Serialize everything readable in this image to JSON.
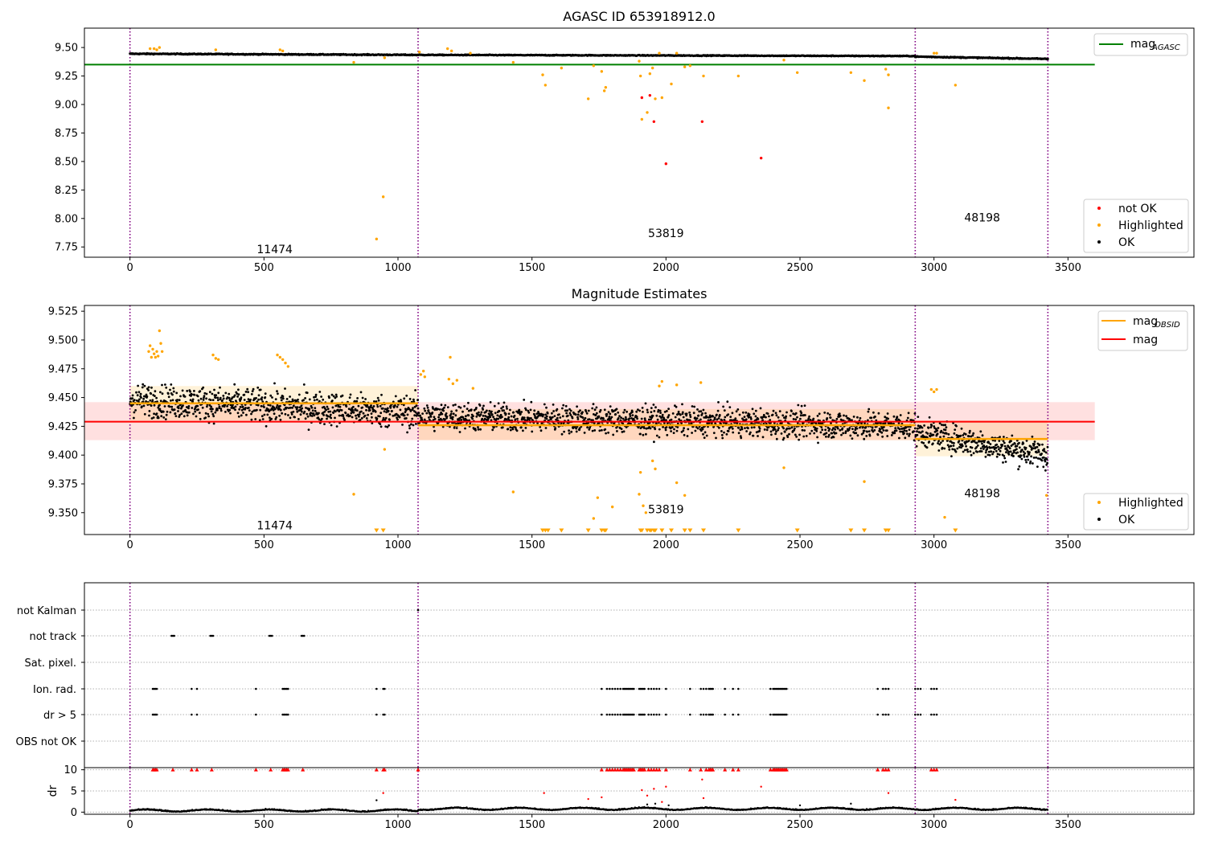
{
  "chart_data": [
    {
      "type": "scatter",
      "title": "AGASC ID 653918912.0",
      "xticks": [
        "0",
        "500",
        "1000",
        "1500",
        "2000",
        "2500",
        "3000",
        "3500"
      ],
      "yticks": [
        "7.75",
        "8.00",
        "8.25",
        "8.50",
        "8.75",
        "9.00",
        "9.25",
        "9.50"
      ],
      "xlim": [
        -170,
        3970
      ],
      "ylim": [
        7.66,
        9.67
      ],
      "mag_agasc": 9.35,
      "mag_agasc_xrange": [
        -170,
        3600
      ],
      "legend_line": "mag",
      "legend_line_sub": "AGASC",
      "legend_points": [
        "not OK",
        "Highlighted",
        "OK"
      ],
      "obsid_boundaries": [
        0,
        1075,
        2930,
        3425
      ],
      "annotations": [
        {
          "text": "11474",
          "x": 540,
          "y": 7.73
        },
        {
          "text": "53819",
          "x": 2000,
          "y": 7.87
        },
        {
          "text": "48198",
          "x": 3180,
          "y": 8.01
        }
      ],
      "series": [
        {
          "name": "not OK",
          "color": "#ff0000",
          "points": [
            [
              1910,
              9.06
            ],
            [
              1940,
              9.08
            ],
            [
              1955,
              8.85
            ],
            [
              2000,
              8.48
            ],
            [
              2135,
              8.85
            ],
            [
              2355,
              8.53
            ]
          ]
        },
        {
          "name": "Highlighted",
          "color": "#ffa500",
          "points": [
            [
              75,
              9.49
            ],
            [
              90,
              9.49
            ],
            [
              100,
              9.48
            ],
            [
              110,
              9.5
            ],
            [
              320,
              9.48
            ],
            [
              560,
              9.48
            ],
            [
              570,
              9.47
            ],
            [
              835,
              9.37
            ],
            [
              920,
              7.82
            ],
            [
              945,
              8.19
            ],
            [
              950,
              9.41
            ],
            [
              1080,
              9.46
            ],
            [
              1185,
              9.49
            ],
            [
              1200,
              9.47
            ],
            [
              1270,
              9.45
            ],
            [
              1430,
              9.37
            ],
            [
              1540,
              9.26
            ],
            [
              1550,
              9.17
            ],
            [
              1610,
              9.32
            ],
            [
              1710,
              9.05
            ],
            [
              1730,
              9.34
            ],
            [
              1760,
              9.29
            ],
            [
              1770,
              9.12
            ],
            [
              1775,
              9.15
            ],
            [
              1900,
              9.38
            ],
            [
              1905,
              9.25
            ],
            [
              1910,
              8.87
            ],
            [
              1930,
              8.93
            ],
            [
              1940,
              9.27
            ],
            [
              1950,
              9.32
            ],
            [
              1960,
              9.05
            ],
            [
              1975,
              9.45
            ],
            [
              1985,
              9.06
            ],
            [
              2020,
              9.18
            ],
            [
              2040,
              9.45
            ],
            [
              2070,
              9.33
            ],
            [
              2090,
              9.34
            ],
            [
              2140,
              9.25
            ],
            [
              2270,
              9.25
            ],
            [
              2440,
              9.39
            ],
            [
              2490,
              9.28
            ],
            [
              2690,
              9.28
            ],
            [
              2740,
              9.21
            ],
            [
              2820,
              9.31
            ],
            [
              2830,
              8.97
            ],
            [
              2830,
              9.26
            ],
            [
              3000,
              9.45
            ],
            [
              3010,
              9.45
            ],
            [
              3080,
              9.17
            ]
          ]
        }
      ],
      "ok_bands": [
        {
          "x0": 0,
          "x1": 1075,
          "y0": 9.445,
          "y1": 9.435,
          "jitter": 0.012
        },
        {
          "x0": 1075,
          "x1": 2930,
          "y0": 9.435,
          "y1": 9.425,
          "jitter": 0.01
        },
        {
          "x0": 2930,
          "x1": 3425,
          "y0": 9.42,
          "y1": 9.4,
          "jitter": 0.012
        }
      ]
    },
    {
      "type": "scatter",
      "title": "Magnitude Estimates",
      "xticks": [
        "0",
        "500",
        "1000",
        "1500",
        "2000",
        "2500",
        "3000",
        "3500"
      ],
      "yticks": [
        "9.350",
        "9.375",
        "9.400",
        "9.425",
        "9.450",
        "9.475",
        "9.500",
        "9.525"
      ],
      "xlim": [
        -170,
        3970
      ],
      "ylim": [
        9.331,
        9.53
      ],
      "mag": 9.429,
      "mag_band": [
        9.413,
        9.446
      ],
      "mag_xrange": [
        -170,
        3600
      ],
      "mag_obsid": [
        {
          "x0": 0,
          "x1": 1075,
          "value": 9.445,
          "band": [
            9.43,
            9.46
          ]
        },
        {
          "x0": 1075,
          "x1": 2930,
          "value": 9.426,
          "band": [
            9.413,
            9.44
          ]
        },
        {
          "x0": 2930,
          "x1": 3425,
          "value": 9.414,
          "band": [
            9.399,
            9.43
          ]
        }
      ],
      "legend_lines": [
        {
          "label": "mag",
          "sub": "OBSID",
          "color": "#ffa500"
        },
        {
          "label": "mag",
          "sub": "",
          "color": "#ff0000"
        }
      ],
      "legend_points": [
        "Highlighted",
        "OK"
      ],
      "obsid_boundaries": [
        0,
        1075,
        2930,
        3425
      ],
      "annotations": [
        {
          "text": "11474",
          "x": 540,
          "y": 9.339
        },
        {
          "text": "53819",
          "x": 2000,
          "y": 9.353
        },
        {
          "text": "48198",
          "x": 3180,
          "y": 9.367
        }
      ],
      "highlighted_points": [
        [
          70,
          9.49
        ],
        [
          75,
          9.495
        ],
        [
          80,
          9.485
        ],
        [
          85,
          9.492
        ],
        [
          90,
          9.488
        ],
        [
          95,
          9.485
        ],
        [
          100,
          9.49
        ],
        [
          105,
          9.486
        ],
        [
          110,
          9.508
        ],
        [
          115,
          9.497
        ],
        [
          120,
          9.49
        ],
        [
          310,
          9.487
        ],
        [
          320,
          9.484
        ],
        [
          330,
          9.483
        ],
        [
          550,
          9.487
        ],
        [
          560,
          9.485
        ],
        [
          570,
          9.483
        ],
        [
          580,
          9.48
        ],
        [
          590,
          9.477
        ],
        [
          835,
          9.366
        ],
        [
          950,
          9.405
        ],
        [
          1085,
          9.47
        ],
        [
          1095,
          9.473
        ],
        [
          1100,
          9.468
        ],
        [
          1190,
          9.466
        ],
        [
          1195,
          9.485
        ],
        [
          1205,
          9.462
        ],
        [
          1220,
          9.465
        ],
        [
          1280,
          9.458
        ],
        [
          1430,
          9.368
        ],
        [
          1730,
          9.345
        ],
        [
          1745,
          9.363
        ],
        [
          1800,
          9.355
        ],
        [
          1900,
          9.366
        ],
        [
          1905,
          9.385
        ],
        [
          1915,
          9.356
        ],
        [
          1925,
          9.35
        ],
        [
          1950,
          9.395
        ],
        [
          1960,
          9.388
        ],
        [
          1975,
          9.46
        ],
        [
          1985,
          9.464
        ],
        [
          2040,
          9.376
        ],
        [
          2040,
          9.461
        ],
        [
          2070,
          9.365
        ],
        [
          2130,
          9.463
        ],
        [
          2440,
          9.389
        ],
        [
          2740,
          9.377
        ],
        [
          2990,
          9.457
        ],
        [
          3000,
          9.455
        ],
        [
          3010,
          9.457
        ],
        [
          3040,
          9.346
        ],
        [
          3420,
          9.365
        ]
      ],
      "below_range_markers": [
        920,
        945,
        1540,
        1550,
        1560,
        1610,
        1710,
        1760,
        1770,
        1775,
        1905,
        1910,
        1930,
        1940,
        1945,
        1955,
        1960,
        1985,
        2020,
        2070,
        2090,
        2140,
        2270,
        2490,
        2690,
        2740,
        2820,
        2830,
        3080
      ],
      "ok_bands": [
        {
          "x0": 0,
          "x1": 1075,
          "y0": 9.448,
          "y1": 9.437,
          "jitter": 0.014
        },
        {
          "x0": 1075,
          "x1": 2930,
          "y0": 9.434,
          "y1": 9.425,
          "jitter": 0.012
        },
        {
          "x0": 2930,
          "x1": 3425,
          "y0": 9.42,
          "y1": 9.4,
          "jitter": 0.012
        }
      ]
    },
    {
      "type": "scatter",
      "title": "",
      "xticks": [
        "0",
        "500",
        "1000",
        "1500",
        "2000",
        "2500",
        "3000",
        "3500"
      ],
      "xlim": [
        -170,
        3970
      ],
      "flag_rows": [
        "not Kalman",
        "not track",
        "Sat. pixel.",
        "Ion. rad.",
        "dr > 5",
        "OBS not OK"
      ],
      "flag_points": {
        "not Kalman": [
          1075
        ],
        "not track": [
          155,
          160,
          165,
          300,
          305,
          310,
          520,
          525,
          530,
          640,
          645,
          650
        ],
        "Sat. pixel.": [],
        "Ion. rad.": [
          85,
          90,
          95,
          100,
          230,
          250,
          470,
          570,
          575,
          580,
          585,
          590,
          920,
          945,
          950,
          1760,
          1780,
          1790,
          1800,
          1810,
          1820,
          1830,
          1840,
          1845,
          1850,
          1855,
          1860,
          1865,
          1870,
          1875,
          1880,
          1900,
          1905,
          1910,
          1915,
          1920,
          1935,
          1945,
          1955,
          1965,
          1975,
          2000,
          2090,
          2130,
          2140,
          2150,
          2160,
          2165,
          2170,
          2175,
          2220,
          2250,
          2270,
          2390,
          2400,
          2405,
          2410,
          2415,
          2420,
          2425,
          2430,
          2435,
          2440,
          2445,
          2450,
          2790,
          2810,
          2820,
          2830,
          2930,
          2940,
          2950,
          2990,
          3000,
          3010
        ],
        "dr > 5": [
          85,
          90,
          95,
          100,
          230,
          250,
          470,
          570,
          575,
          580,
          585,
          590,
          920,
          945,
          950,
          1760,
          1780,
          1790,
          1800,
          1810,
          1820,
          1830,
          1840,
          1845,
          1850,
          1855,
          1860,
          1865,
          1870,
          1875,
          1880,
          1900,
          1905,
          1910,
          1915,
          1920,
          1935,
          1945,
          1955,
          1965,
          1975,
          2000,
          2090,
          2130,
          2140,
          2150,
          2160,
          2165,
          2170,
          2175,
          2220,
          2250,
          2270,
          2390,
          2400,
          2405,
          2410,
          2415,
          2420,
          2425,
          2430,
          2435,
          2440,
          2445,
          2450,
          2790,
          2810,
          2820,
          2830,
          2930,
          2940,
          2950,
          2990,
          3000,
          3010
        ],
        "OBS not OK": []
      },
      "obsid_boundaries": [
        0,
        1075,
        2930,
        3425
      ]
    },
    {
      "type": "scatter",
      "title": "",
      "xticks": [
        "0",
        "500",
        "1000",
        "1500",
        "2000",
        "2500",
        "3000",
        "3500"
      ],
      "ylabel": "dr",
      "yticks": [
        "0",
        "5",
        "10"
      ],
      "xlim": [
        -170,
        3970
      ],
      "ylim": [
        -0.5,
        10.5
      ],
      "flagged_points_at_10": [
        85,
        90,
        95,
        100,
        160,
        230,
        250,
        305,
        470,
        525,
        570,
        575,
        580,
        585,
        590,
        645,
        920,
        945,
        950,
        1075,
        1760,
        1780,
        1790,
        1800,
        1810,
        1820,
        1830,
        1840,
        1845,
        1850,
        1855,
        1860,
        1865,
        1870,
        1875,
        1880,
        1900,
        1905,
        1910,
        1915,
        1920,
        1935,
        1945,
        1955,
        1965,
        1975,
        2000,
        2090,
        2130,
        2150,
        2160,
        2165,
        2170,
        2175,
        2220,
        2250,
        2270,
        2390,
        2400,
        2405,
        2410,
        2415,
        2420,
        2425,
        2430,
        2435,
        2440,
        2445,
        2450,
        2790,
        2810,
        2820,
        2830,
        2990,
        3000,
        3010
      ],
      "red_points": [
        [
          945,
          4.5
        ],
        [
          1545,
          4.5
        ],
        [
          1710,
          3.1
        ],
        [
          1760,
          3.5
        ],
        [
          1910,
          5.2
        ],
        [
          1930,
          3.9
        ],
        [
          1955,
          5.5
        ],
        [
          1985,
          2.4
        ],
        [
          2000,
          6.0
        ],
        [
          2135,
          7.7
        ],
        [
          2140,
          3.3
        ],
        [
          2355,
          6.0
        ],
        [
          2830,
          4.5
        ],
        [
          3080,
          2.9
        ]
      ],
      "black_points": [
        [
          920,
          2.8
        ],
        [
          1930,
          1.8
        ],
        [
          1960,
          2.0
        ],
        [
          2010,
          1.6
        ],
        [
          2500,
          1.6
        ],
        [
          2690,
          2.0
        ]
      ]
    }
  ]
}
